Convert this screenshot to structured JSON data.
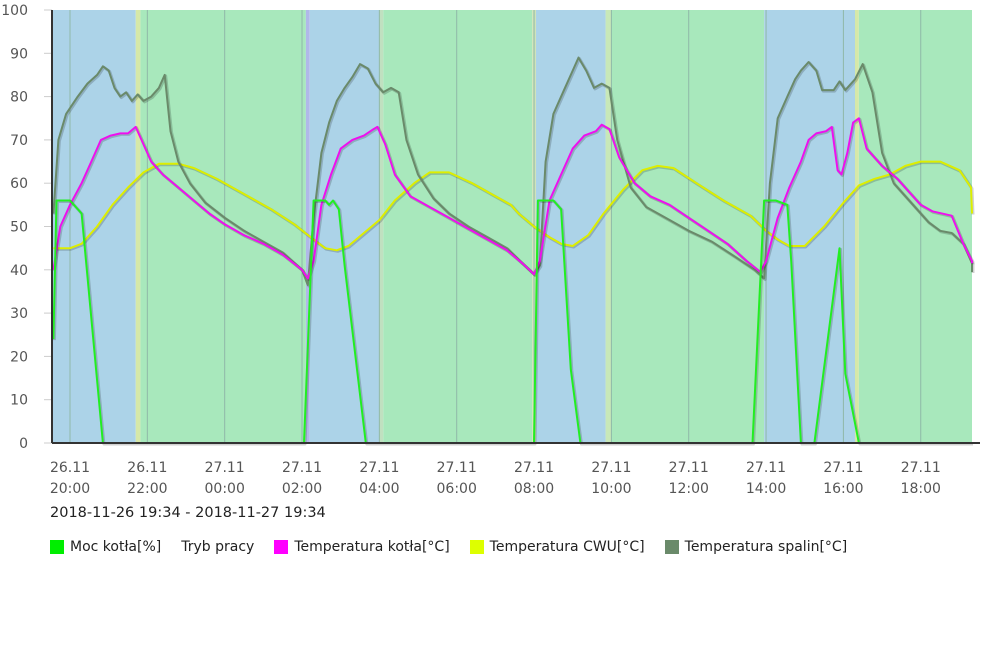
{
  "chart_data": {
    "type": "line",
    "title": "",
    "xlabel": "",
    "ylabel": "",
    "ylim": [
      0,
      100
    ],
    "yticks": [
      0,
      10,
      20,
      30,
      40,
      50,
      60,
      70,
      80,
      90,
      100
    ],
    "grid": "vertical",
    "legend_position": "bottom",
    "x_unit": "hours since 2018-11-26 20:00",
    "xlim": [
      -0.43,
      23.57
    ],
    "x_ticks": [
      {
        "t": 0,
        "date": "26.11",
        "time": "20:00"
      },
      {
        "t": 2,
        "date": "26.11",
        "time": "22:00"
      },
      {
        "t": 4,
        "date": "27.11",
        "time": "00:00"
      },
      {
        "t": 6,
        "date": "27.11",
        "time": "02:00"
      },
      {
        "t": 8,
        "date": "27.11",
        "time": "04:00"
      },
      {
        "t": 10,
        "date": "27.11",
        "time": "06:00"
      },
      {
        "t": 12,
        "date": "27.11",
        "time": "08:00"
      },
      {
        "t": 14,
        "date": "27.11",
        "time": "10:00"
      },
      {
        "t": 16,
        "date": "27.11",
        "time": "12:00"
      },
      {
        "t": 18,
        "date": "27.11",
        "time": "14:00"
      },
      {
        "t": 20,
        "date": "27.11",
        "time": "16:00"
      },
      {
        "t": 22,
        "date": "27.11",
        "time": "18:00"
      }
    ],
    "mode_bands": [
      {
        "from": -0.45,
        "to": 1.7,
        "mode": "rozpalanie",
        "color": "#acd3e8"
      },
      {
        "from": 1.7,
        "to": 1.82,
        "mode": "przejscie",
        "color": "#d6e8a8"
      },
      {
        "from": 1.82,
        "to": 6.1,
        "mode": "wygaszanie",
        "color": "#a8e8bc"
      },
      {
        "from": 6.1,
        "to": 6.2,
        "mode": "przejscie",
        "color": "#b0b8e8"
      },
      {
        "from": 6.2,
        "to": 8.0,
        "mode": "rozpalanie",
        "color": "#acd3e8"
      },
      {
        "from": 8.0,
        "to": 8.1,
        "mode": "przejscie",
        "color": "#c0e0c0"
      },
      {
        "from": 8.1,
        "to": 11.95,
        "mode": "wygaszanie",
        "color": "#a8e8bc"
      },
      {
        "from": 11.95,
        "to": 12.05,
        "mode": "przejscie",
        "color": "#d0e4b8"
      },
      {
        "from": 12.05,
        "to": 13.85,
        "mode": "rozpalanie",
        "color": "#acd3e8"
      },
      {
        "from": 13.85,
        "to": 14.0,
        "mode": "przejscie",
        "color": "#c8e8b8"
      },
      {
        "from": 14.0,
        "to": 17.95,
        "mode": "wygaszanie",
        "color": "#a8e8bc"
      },
      {
        "from": 17.95,
        "to": 20.3,
        "mode": "rozpalanie",
        "color": "#acd3e8"
      },
      {
        "from": 20.3,
        "to": 20.4,
        "mode": "przejscie",
        "color": "#d6e8a8"
      },
      {
        "from": 20.4,
        "to": 23.5,
        "mode": "wygaszanie",
        "color": "#a8e8bc"
      }
    ],
    "series": [
      {
        "name": "Moc kotła[%]",
        "color": "#22ee22",
        "points": [
          [
            -0.43,
            24
          ],
          [
            -0.35,
            56
          ],
          [
            0.0,
            56
          ],
          [
            0.3,
            53
          ],
          [
            0.85,
            0
          ],
          [
            6.05,
            0
          ],
          [
            6.3,
            56
          ],
          [
            6.6,
            56
          ],
          [
            6.7,
            55
          ],
          [
            6.8,
            56
          ],
          [
            6.95,
            54
          ],
          [
            7.1,
            41
          ],
          [
            7.65,
            0
          ],
          [
            12.0,
            0
          ],
          [
            12.1,
            56
          ],
          [
            12.5,
            56
          ],
          [
            12.7,
            54
          ],
          [
            12.95,
            17
          ],
          [
            13.2,
            0
          ],
          [
            17.65,
            0
          ],
          [
            17.95,
            56
          ],
          [
            18.25,
            56
          ],
          [
            18.55,
            55
          ],
          [
            18.65,
            42
          ],
          [
            18.9,
            0
          ],
          [
            19.25,
            0
          ],
          [
            19.9,
            45
          ],
          [
            20.05,
            16
          ],
          [
            20.4,
            0
          ],
          [
            23.5,
            0
          ]
        ]
      },
      {
        "name": "Temperatura kotła[°C]",
        "color": "#ee10ee",
        "points": [
          [
            -0.43,
            40
          ],
          [
            -0.25,
            50
          ],
          [
            0.0,
            55
          ],
          [
            0.3,
            60
          ],
          [
            0.55,
            65
          ],
          [
            0.8,
            70
          ],
          [
            1.05,
            71
          ],
          [
            1.3,
            71.5
          ],
          [
            1.5,
            71.5
          ],
          [
            1.7,
            73
          ],
          [
            1.85,
            70
          ],
          [
            2.1,
            65
          ],
          [
            2.4,
            62
          ],
          [
            2.8,
            59
          ],
          [
            3.2,
            56
          ],
          [
            3.6,
            53
          ],
          [
            4.0,
            50.5
          ],
          [
            4.5,
            48
          ],
          [
            5.0,
            46
          ],
          [
            5.5,
            43.5
          ],
          [
            6.0,
            40
          ],
          [
            6.15,
            38
          ],
          [
            6.3,
            42
          ],
          [
            6.5,
            55
          ],
          [
            6.75,
            62
          ],
          [
            7.0,
            68
          ],
          [
            7.3,
            70
          ],
          [
            7.6,
            71
          ],
          [
            7.85,
            72.5
          ],
          [
            7.95,
            73
          ],
          [
            8.15,
            69
          ],
          [
            8.4,
            62
          ],
          [
            8.8,
            57
          ],
          [
            9.3,
            54.5
          ],
          [
            9.8,
            52
          ],
          [
            10.3,
            49.5
          ],
          [
            10.8,
            47
          ],
          [
            11.3,
            44.5
          ],
          [
            11.7,
            41.5
          ],
          [
            12.0,
            39
          ],
          [
            12.15,
            42
          ],
          [
            12.4,
            56
          ],
          [
            12.7,
            62
          ],
          [
            13.0,
            68
          ],
          [
            13.3,
            71
          ],
          [
            13.6,
            72
          ],
          [
            13.75,
            73.5
          ],
          [
            13.95,
            72.5
          ],
          [
            14.2,
            66
          ],
          [
            14.6,
            60
          ],
          [
            15.0,
            57
          ],
          [
            15.5,
            55
          ],
          [
            16.0,
            52
          ],
          [
            16.5,
            49
          ],
          [
            17.0,
            46
          ],
          [
            17.5,
            42
          ],
          [
            17.85,
            39.5
          ],
          [
            18.0,
            42
          ],
          [
            18.3,
            52
          ],
          [
            18.6,
            59
          ],
          [
            18.9,
            65
          ],
          [
            19.1,
            70
          ],
          [
            19.3,
            71.5
          ],
          [
            19.55,
            72
          ],
          [
            19.7,
            73
          ],
          [
            19.85,
            63
          ],
          [
            19.95,
            62
          ],
          [
            20.1,
            67
          ],
          [
            20.25,
            74
          ],
          [
            20.4,
            75
          ],
          [
            20.6,
            68
          ],
          [
            21.0,
            64
          ],
          [
            21.4,
            61
          ],
          [
            21.7,
            58
          ],
          [
            22.0,
            55
          ],
          [
            22.3,
            53.5
          ],
          [
            22.8,
            52.5
          ],
          [
            23.1,
            46
          ],
          [
            23.4,
            42
          ],
          [
            23.57,
            41.5
          ]
        ]
      },
      {
        "name": "Temperatura CWU[°C]",
        "color": "#ddee00",
        "points": [
          [
            -0.43,
            45
          ],
          [
            0.0,
            45
          ],
          [
            0.3,
            46
          ],
          [
            0.7,
            50
          ],
          [
            1.1,
            55
          ],
          [
            1.5,
            59
          ],
          [
            1.9,
            62.5
          ],
          [
            2.3,
            64.5
          ],
          [
            2.8,
            64.5
          ],
          [
            3.2,
            63.5
          ],
          [
            3.8,
            61
          ],
          [
            4.5,
            57.5
          ],
          [
            5.2,
            54
          ],
          [
            5.8,
            50.5
          ],
          [
            6.3,
            47
          ],
          [
            6.6,
            45
          ],
          [
            6.9,
            44.5
          ],
          [
            7.2,
            45.5
          ],
          [
            7.6,
            48.5
          ],
          [
            8.0,
            51.5
          ],
          [
            8.4,
            56
          ],
          [
            8.9,
            60
          ],
          [
            9.3,
            62.5
          ],
          [
            9.8,
            62.5
          ],
          [
            10.4,
            60
          ],
          [
            11.0,
            57
          ],
          [
            11.4,
            55
          ],
          [
            11.6,
            53
          ],
          [
            12.0,
            50
          ],
          [
            12.4,
            47.5
          ],
          [
            12.7,
            46
          ],
          [
            13.0,
            45.5
          ],
          [
            13.4,
            48
          ],
          [
            13.8,
            53
          ],
          [
            14.3,
            58.5
          ],
          [
            14.8,
            63
          ],
          [
            15.2,
            64
          ],
          [
            15.6,
            63.5
          ],
          [
            16.2,
            60
          ],
          [
            16.9,
            56
          ],
          [
            17.6,
            52.5
          ],
          [
            18.0,
            49
          ],
          [
            18.3,
            47
          ],
          [
            18.6,
            45.5
          ],
          [
            19.0,
            45.5
          ],
          [
            19.5,
            50
          ],
          [
            20.0,
            55.5
          ],
          [
            20.4,
            59.5
          ],
          [
            20.8,
            61
          ],
          [
            21.2,
            62
          ],
          [
            21.6,
            64
          ],
          [
            22.0,
            65
          ],
          [
            22.5,
            65
          ],
          [
            23.0,
            63
          ],
          [
            23.3,
            59
          ],
          [
            23.57,
            53
          ]
        ]
      },
      {
        "name": "Temperatura spalin[°C]",
        "color": "#6a8a6a",
        "points": [
          [
            -0.43,
            53
          ],
          [
            -0.3,
            70
          ],
          [
            -0.1,
            76
          ],
          [
            0.2,
            80
          ],
          [
            0.45,
            83
          ],
          [
            0.7,
            85
          ],
          [
            0.85,
            87
          ],
          [
            1.0,
            86
          ],
          [
            1.15,
            82
          ],
          [
            1.3,
            80
          ],
          [
            1.45,
            81
          ],
          [
            1.6,
            79
          ],
          [
            1.75,
            80.5
          ],
          [
            1.9,
            79
          ],
          [
            2.1,
            80
          ],
          [
            2.3,
            82
          ],
          [
            2.45,
            85
          ],
          [
            2.6,
            72
          ],
          [
            2.8,
            65
          ],
          [
            3.1,
            60
          ],
          [
            3.5,
            55.5
          ],
          [
            4.0,
            52
          ],
          [
            4.5,
            49
          ],
          [
            5.0,
            46.5
          ],
          [
            5.5,
            44
          ],
          [
            6.0,
            40
          ],
          [
            6.15,
            36.5
          ],
          [
            6.3,
            52
          ],
          [
            6.5,
            67
          ],
          [
            6.7,
            74
          ],
          [
            6.9,
            79
          ],
          [
            7.1,
            82
          ],
          [
            7.3,
            84.5
          ],
          [
            7.5,
            87.5
          ],
          [
            7.7,
            86.5
          ],
          [
            7.9,
            83
          ],
          [
            8.1,
            81
          ],
          [
            8.3,
            82
          ],
          [
            8.5,
            81
          ],
          [
            8.7,
            70
          ],
          [
            9.0,
            62
          ],
          [
            9.4,
            56.5
          ],
          [
            9.8,
            53
          ],
          [
            10.3,
            50
          ],
          [
            10.8,
            47.5
          ],
          [
            11.3,
            45
          ],
          [
            11.7,
            41.5
          ],
          [
            12.0,
            39
          ],
          [
            12.15,
            41
          ],
          [
            12.3,
            65
          ],
          [
            12.5,
            76
          ],
          [
            12.75,
            81
          ],
          [
            13.0,
            86
          ],
          [
            13.15,
            89
          ],
          [
            13.35,
            86
          ],
          [
            13.55,
            82
          ],
          [
            13.75,
            83
          ],
          [
            13.95,
            82
          ],
          [
            14.15,
            70
          ],
          [
            14.5,
            59
          ],
          [
            14.9,
            54.5
          ],
          [
            15.4,
            52
          ],
          [
            16.0,
            49
          ],
          [
            16.6,
            46.5
          ],
          [
            17.2,
            43
          ],
          [
            17.7,
            40
          ],
          [
            17.95,
            38
          ],
          [
            18.1,
            60
          ],
          [
            18.3,
            75
          ],
          [
            18.55,
            80
          ],
          [
            18.75,
            84
          ],
          [
            18.9,
            86
          ],
          [
            19.1,
            88
          ],
          [
            19.3,
            86
          ],
          [
            19.45,
            81.5
          ],
          [
            19.75,
            81.5
          ],
          [
            19.9,
            83.5
          ],
          [
            20.05,
            81.5
          ],
          [
            20.3,
            84
          ],
          [
            20.5,
            87.5
          ],
          [
            20.75,
            81
          ],
          [
            21.0,
            67
          ],
          [
            21.3,
            60
          ],
          [
            21.6,
            57
          ],
          [
            21.9,
            54
          ],
          [
            22.2,
            51
          ],
          [
            22.5,
            49
          ],
          [
            22.8,
            48.5
          ],
          [
            23.1,
            46
          ],
          [
            23.4,
            41.5
          ],
          [
            23.57,
            39.5
          ]
        ]
      }
    ]
  },
  "date_range": "2018-11-26 19:34 - 2018-11-27 19:34",
  "legend": [
    {
      "label": "Moc kotła[%]",
      "color": "#00ee00",
      "swatch": true
    },
    {
      "label": "Tryb pracy",
      "color": "",
      "swatch": false
    },
    {
      "label": "Temperatura kotła[°C]",
      "color": "#ff00ff",
      "swatch": true
    },
    {
      "label": "Temperatura CWU[°C]",
      "color": "#ddff00",
      "swatch": true
    },
    {
      "label": "Temperatura spalin[°C]",
      "color": "#6a8a6a",
      "swatch": true
    }
  ]
}
